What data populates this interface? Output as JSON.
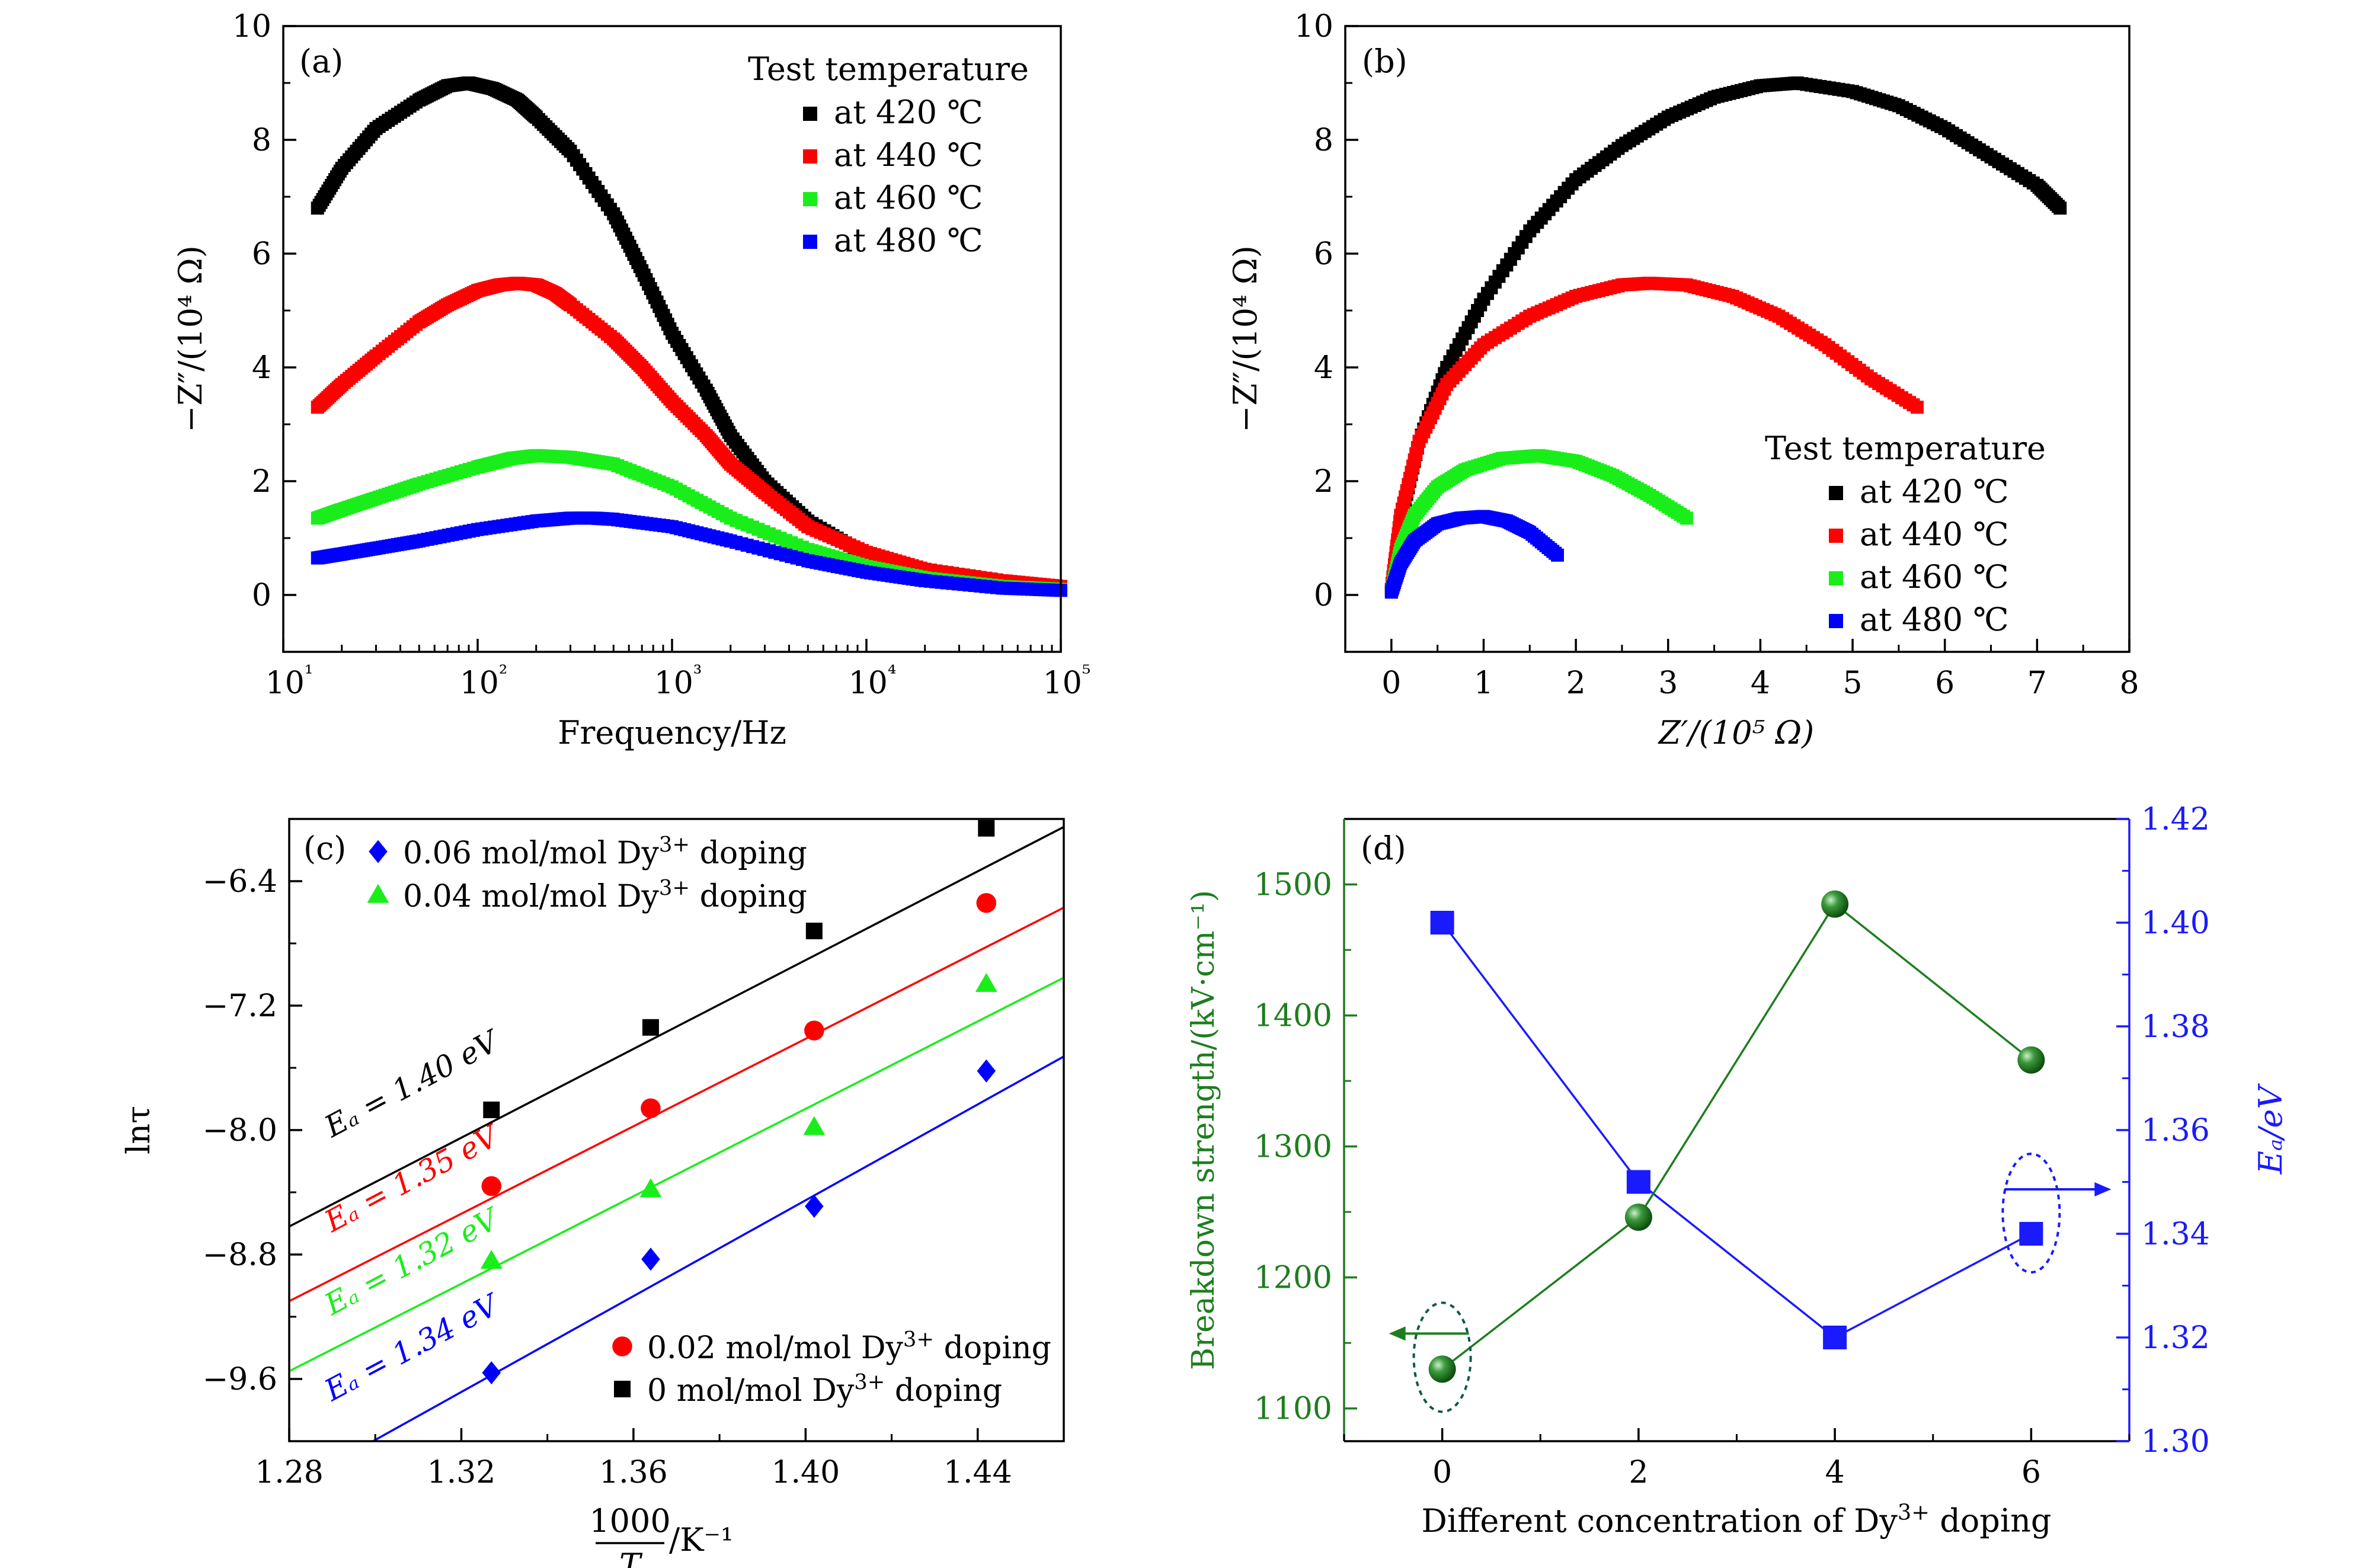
{
  "colors": {
    "black": "#000000",
    "red": "#ff0000",
    "green": "#1aee1a",
    "blue": "#0000ff",
    "breakdown_green": "#1e7d1e",
    "ea_blue": "#1a1aff"
  },
  "chart_data": [
    {
      "panel": "(a)",
      "type": "scatter",
      "xscale": "log",
      "xlabel": "Frequency/Hz",
      "ylabel": "−Z″/(10⁴ Ω)",
      "xlim": [
        10,
        100000
      ],
      "ylim": [
        -1,
        10
      ],
      "xticks": [
        "10¹",
        "10²",
        "10³",
        "10⁴",
        "10⁵"
      ],
      "yticks": [
        0,
        2,
        4,
        6,
        8,
        10
      ],
      "legend_title": "Test temperature",
      "legend_position": "top-right",
      "series": [
        {
          "name": "at 420 ℃",
          "color": "#000000",
          "x": [
            15,
            20,
            30,
            50,
            70,
            90,
            120,
            160,
            200,
            300,
            500,
            700,
            1000,
            1500,
            2000,
            3000,
            5000,
            10000,
            20000,
            50000,
            100000
          ],
          "y": [
            6.8,
            7.5,
            8.2,
            8.7,
            8.95,
            9.0,
            8.9,
            8.7,
            8.4,
            7.8,
            6.7,
            5.7,
            4.6,
            3.6,
            2.8,
            2.0,
            1.3,
            0.7,
            0.45,
            0.25,
            0.15
          ]
        },
        {
          "name": "at 440 ℃",
          "color": "#ff0000",
          "x": [
            15,
            20,
            30,
            50,
            70,
            100,
            130,
            160,
            200,
            250,
            300,
            500,
            700,
            1000,
            1500,
            2000,
            3000,
            5000,
            10000,
            20000,
            50000,
            100000
          ],
          "y": [
            3.3,
            3.7,
            4.2,
            4.8,
            5.1,
            5.35,
            5.45,
            5.48,
            5.45,
            5.3,
            5.1,
            4.5,
            4.0,
            3.4,
            2.8,
            2.3,
            1.8,
            1.2,
            0.75,
            0.45,
            0.25,
            0.15
          ]
        },
        {
          "name": "at 460 ℃",
          "color": "#1aee1a",
          "x": [
            15,
            20,
            30,
            50,
            100,
            150,
            200,
            300,
            500,
            1000,
            2000,
            5000,
            10000,
            20000,
            50000,
            100000
          ],
          "y": [
            1.35,
            1.5,
            1.7,
            1.95,
            2.25,
            2.4,
            2.45,
            2.42,
            2.3,
            1.9,
            1.35,
            0.8,
            0.5,
            0.3,
            0.15,
            0.1
          ]
        },
        {
          "name": "at 480 ℃",
          "color": "#0000ff",
          "x": [
            15,
            20,
            30,
            50,
            100,
            200,
            300,
            400,
            500,
            1000,
            2000,
            5000,
            10000,
            20000,
            50000,
            100000
          ],
          "y": [
            0.65,
            0.72,
            0.82,
            0.95,
            1.15,
            1.3,
            1.35,
            1.35,
            1.33,
            1.2,
            0.95,
            0.6,
            0.4,
            0.25,
            0.12,
            0.08
          ]
        }
      ]
    },
    {
      "panel": "(b)",
      "type": "scatter",
      "xlabel": "Z′/(10⁵ Ω)",
      "ylabel": "−Z″/(10⁴ Ω)",
      "xlim": [
        -0.5,
        8
      ],
      "ylim": [
        -1,
        10
      ],
      "xticks": [
        0,
        1,
        2,
        3,
        4,
        5,
        6,
        7,
        8
      ],
      "yticks": [
        0,
        2,
        4,
        6,
        8,
        10
      ],
      "legend_title": "Test temperature",
      "legend_position": "bottom-right",
      "series": [
        {
          "name": "at 420 ℃",
          "color": "#000000",
          "x": [
            0.0,
            0.1,
            0.3,
            0.6,
            1.0,
            1.5,
            2.0,
            2.5,
            3.0,
            3.5,
            4.0,
            4.4,
            5.0,
            5.5,
            6.0,
            6.5,
            7.0,
            7.25
          ],
          "y": [
            0.1,
            1.3,
            2.7,
            4.0,
            5.2,
            6.4,
            7.3,
            7.9,
            8.4,
            8.75,
            8.95,
            9.0,
            8.85,
            8.6,
            8.2,
            7.7,
            7.2,
            6.8
          ]
        },
        {
          "name": "at 440 ℃",
          "color": "#ff0000",
          "x": [
            0.0,
            0.1,
            0.3,
            0.6,
            1.0,
            1.5,
            2.0,
            2.5,
            2.8,
            3.2,
            3.7,
            4.2,
            4.7,
            5.2,
            5.7
          ],
          "y": [
            0.1,
            1.4,
            2.7,
            3.7,
            4.4,
            4.9,
            5.25,
            5.45,
            5.48,
            5.45,
            5.25,
            4.9,
            4.4,
            3.8,
            3.3
          ]
        },
        {
          "name": "at 460 ℃",
          "color": "#1aee1a",
          "x": [
            0.0,
            0.1,
            0.25,
            0.5,
            0.8,
            1.2,
            1.6,
            2.0,
            2.4,
            2.8,
            3.2
          ],
          "y": [
            0.05,
            0.8,
            1.4,
            1.9,
            2.2,
            2.4,
            2.45,
            2.35,
            2.1,
            1.75,
            1.35
          ]
        },
        {
          "name": "at 480 ℃",
          "color": "#0000ff",
          "x": [
            0.0,
            0.1,
            0.25,
            0.5,
            0.75,
            1.0,
            1.25,
            1.5,
            1.8
          ],
          "y": [
            0.05,
            0.55,
            0.95,
            1.25,
            1.35,
            1.38,
            1.3,
            1.1,
            0.7
          ]
        }
      ]
    },
    {
      "panel": "(c)",
      "type": "scatter",
      "xlabel_num": "1000",
      "xlabel_den": "T",
      "xlabel_unit": "/K⁻¹",
      "ylabel": "lnτ",
      "xlim": [
        1.28,
        1.46
      ],
      "ylim": [
        -10.0,
        -6.0
      ],
      "xticks": [
        "1.28",
        "1.32",
        "1.36",
        "1.40",
        "1.44"
      ],
      "yticks": [
        "−6.4",
        "−7.2",
        "−8.0",
        "−8.8",
        "−9.6"
      ],
      "series": [
        {
          "name": "0 mol/mol Dy³⁺ doping",
          "marker": "square",
          "color": "#000000",
          "x": [
            1.327,
            1.364,
            1.402,
            1.442
          ],
          "y": [
            -7.87,
            -7.34,
            -6.72,
            -6.06
          ],
          "fit_label": "Eₐ = 1.40 eV",
          "fit": [
            [
              1.28,
              -8.62
            ],
            [
              1.465,
              -5.98
            ]
          ]
        },
        {
          "name": "0.02 mol/mol Dy³⁺ doping",
          "marker": "circle",
          "color": "#ff0000",
          "x": [
            1.327,
            1.364,
            1.402,
            1.442
          ],
          "y": [
            -8.36,
            -7.86,
            -7.36,
            -6.54
          ],
          "fit_label": "Eₐ = 1.35 eV",
          "fit": [
            [
              1.28,
              -9.1
            ],
            [
              1.465,
              -6.5
            ]
          ]
        },
        {
          "name": "0.04 mol/mol Dy³⁺ doping",
          "marker": "triangle",
          "color": "#1aee1a",
          "x": [
            1.327,
            1.364,
            1.402,
            1.442
          ],
          "y": [
            -8.84,
            -8.38,
            -7.98,
            -7.06
          ],
          "fit_label": "Eₐ = 1.32 eV",
          "fit": [
            [
              1.28,
              -9.55
            ],
            [
              1.465,
              -6.95
            ]
          ]
        },
        {
          "name": "0.06 mol/mol Dy³⁺ doping",
          "marker": "diamond",
          "color": "#0000ff",
          "x": [
            1.327,
            1.364,
            1.402,
            1.442
          ],
          "y": [
            -9.56,
            -8.83,
            -8.49,
            -7.62
          ],
          "fit_label": "Eₐ = 1.34 eV",
          "fit": [
            [
              1.28,
              -10.3
            ],
            [
              1.465,
              -7.45
            ]
          ]
        }
      ]
    },
    {
      "panel": "(d)",
      "type": "line",
      "xlabel": "Different concentration of Dy³⁺ doping",
      "ylabel_left": "Breakdown strength/(kV·cm⁻¹)",
      "ylabel_right": "Eₐ/eV",
      "xlim": [
        -1,
        7
      ],
      "ylim_left": [
        1075,
        1550
      ],
      "ylim_right": [
        1.3,
        1.42
      ],
      "xticks": [
        0,
        2,
        4,
        6
      ],
      "yticks_left": [
        1100,
        1200,
        1300,
        1400,
        1500
      ],
      "yticks_right": [
        "1.30",
        "1.32",
        "1.34",
        "1.36",
        "1.38",
        "1.40",
        "1.42"
      ],
      "series": [
        {
          "name": "Breakdown strength",
          "axis": "left",
          "color": "#1e7d1e",
          "marker": "sphere",
          "x": [
            0,
            2,
            4,
            6
          ],
          "y": [
            1130,
            1246,
            1485,
            1366
          ]
        },
        {
          "name": "Ea",
          "axis": "right",
          "color": "#1a1aff",
          "marker": "square",
          "x": [
            0,
            2,
            4,
            6
          ],
          "y": [
            1.4,
            1.35,
            1.32,
            1.34
          ]
        }
      ]
    }
  ]
}
